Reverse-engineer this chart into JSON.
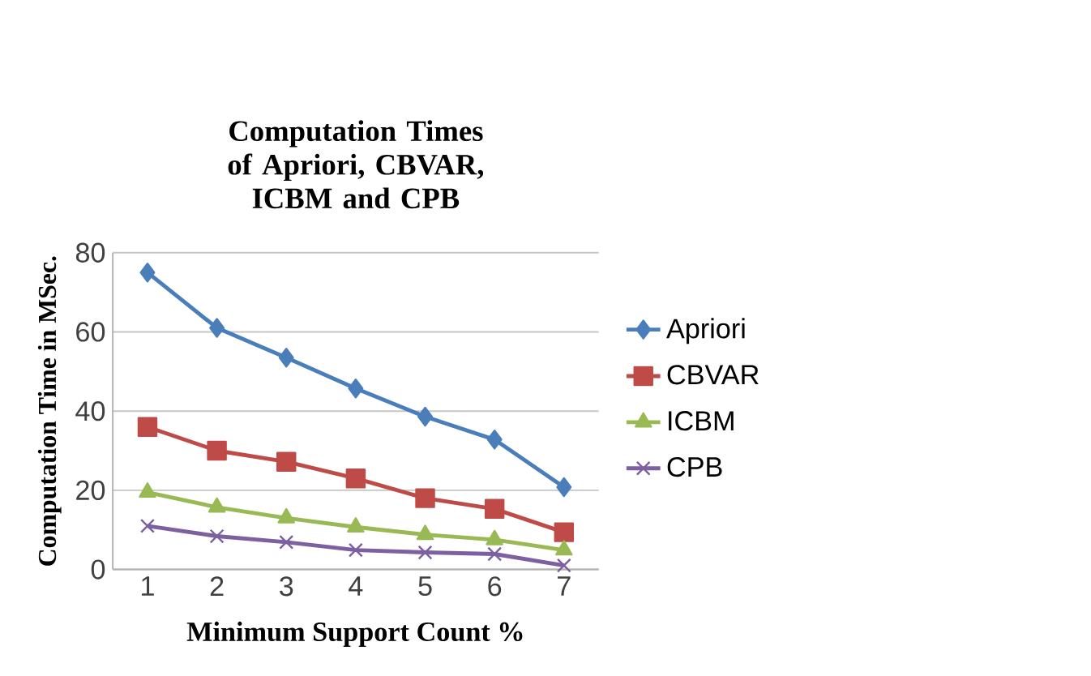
{
  "chart_data": {
    "type": "line",
    "title": "Computation Times of Apriori, CBVAR, ICBM and    CPB",
    "xlabel": "Minimum Support Count %",
    "ylabel": "Computation Time in MSec.",
    "categories": [
      "1",
      "2",
      "3",
      "4",
      "5",
      "6",
      "7"
    ],
    "series": [
      {
        "name": "Apriori",
        "color": "#4a7ebb",
        "marker": "diamond",
        "values": [
          75,
          61,
          53.5,
          45.7,
          38.6,
          32.8,
          20.8
        ]
      },
      {
        "name": "CBVAR",
        "color": "#be4b48",
        "marker": "square",
        "values": [
          36,
          30,
          27.2,
          23,
          18,
          15.3,
          9.4
        ]
      },
      {
        "name": "ICBM",
        "color": "#98b954",
        "marker": "triangle",
        "values": [
          19.5,
          15.7,
          13,
          10.7,
          8.8,
          7.5,
          4.9
        ]
      },
      {
        "name": "CPB",
        "color": "#7d60a0",
        "marker": "cross",
        "values": [
          11,
          8.4,
          6.9,
          4.9,
          4.3,
          3.9,
          1
        ]
      }
    ],
    "ylim": [
      0,
      80
    ],
    "yticks": [
      0,
      20,
      40,
      60,
      80
    ],
    "grid": "y",
    "legend": "right"
  }
}
